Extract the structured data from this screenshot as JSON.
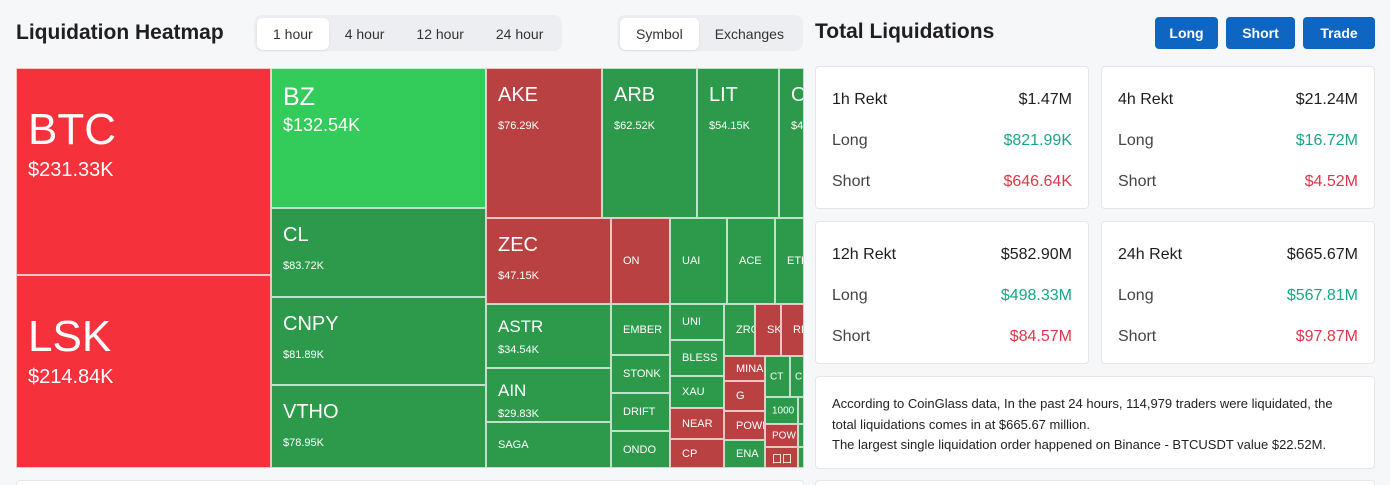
{
  "heatmap": {
    "title": "Liquidation Heatmap",
    "time_tabs": [
      "1 hour",
      "4 hour",
      "12 hour",
      "24 hour"
    ],
    "active_time": "1 hour",
    "view_tabs": [
      "Symbol",
      "Exchanges"
    ],
    "active_view": "Symbol"
  },
  "colors": {
    "long_liquidation_bright": "#f5323b",
    "short_liquidation_bright": "#33cc5a",
    "long_liquidation": "#b94141",
    "short_liquidation": "#2c9a4a",
    "accent": "#0f66c2",
    "long_text": "#18a689",
    "short_text": "#e0364a"
  },
  "tiles": [
    {
      "symbol": "BTC",
      "value": "$231.33K",
      "color": "long_liquidation_bright",
      "size": "xl"
    },
    {
      "symbol": "LSK",
      "value": "$214.84K",
      "color": "long_liquidation_bright",
      "size": "xl"
    },
    {
      "symbol": "BZ",
      "value": "$132.54K",
      "color": "short_liquidation_bright",
      "size": "lg"
    },
    {
      "symbol": "CL",
      "value": "$83.72K",
      "color": "short_liquidation",
      "size": "md"
    },
    {
      "symbol": "CNPY",
      "value": "$81.89K",
      "color": "short_liquidation",
      "size": "md"
    },
    {
      "symbol": "VTHO",
      "value": "$78.95K",
      "color": "short_liquidation",
      "size": "md"
    },
    {
      "symbol": "AKE",
      "value": "$76.29K",
      "color": "long_liquidation",
      "size": "md"
    },
    {
      "symbol": "ARB",
      "value": "$62.52K",
      "color": "short_liquidation",
      "size": "md"
    },
    {
      "symbol": "LIT",
      "value": "$54.15K",
      "color": "short_liquidation",
      "size": "md"
    },
    {
      "symbol": "O",
      "value": "$4",
      "color": "short_liquidation",
      "size": "md"
    },
    {
      "symbol": "ZEC",
      "value": "$47.15K",
      "color": "long_liquidation",
      "size": "md"
    },
    {
      "symbol": "ON",
      "value": "",
      "color": "long_liquidation",
      "size": "sm"
    },
    {
      "symbol": "UAI",
      "value": "",
      "color": "short_liquidation",
      "size": "sm"
    },
    {
      "symbol": "ACE",
      "value": "",
      "color": "short_liquidation",
      "size": "sm"
    },
    {
      "symbol": "ETH",
      "value": "",
      "color": "short_liquidation",
      "size": "sm"
    },
    {
      "symbol": "ASTR",
      "value": "$34.54K",
      "color": "short_liquidation",
      "size": "ms"
    },
    {
      "symbol": "AIN",
      "value": "$29.83K",
      "color": "short_liquidation",
      "size": "ms"
    },
    {
      "symbol": "SAGA",
      "value": "",
      "color": "short_liquidation",
      "size": "sm"
    },
    {
      "symbol": "EMBER",
      "value": "",
      "color": "short_liquidation",
      "size": "sm"
    },
    {
      "symbol": "STONK",
      "value": "",
      "color": "short_liquidation",
      "size": "sm"
    },
    {
      "symbol": "DRIFT",
      "value": "",
      "color": "short_liquidation",
      "size": "sm"
    },
    {
      "symbol": "ONDO",
      "value": "",
      "color": "short_liquidation",
      "size": "sm"
    },
    {
      "symbol": "UNI",
      "value": "",
      "color": "short_liquidation",
      "size": "sm"
    },
    {
      "symbol": "BLESS",
      "value": "",
      "color": "short_liquidation",
      "size": "sm"
    },
    {
      "symbol": "XAU",
      "value": "",
      "color": "short_liquidation",
      "size": "sm"
    },
    {
      "symbol": "NEAR",
      "value": "",
      "color": "long_liquidation",
      "size": "sm"
    },
    {
      "symbol": "CP",
      "value": "",
      "color": "long_liquidation",
      "size": "sm"
    },
    {
      "symbol": "ZRO",
      "value": "",
      "color": "short_liquidation",
      "size": "sm"
    },
    {
      "symbol": "SK",
      "value": "",
      "color": "long_liquidation",
      "size": "sm"
    },
    {
      "symbol": "RE",
      "value": "",
      "color": "long_liquidation",
      "size": "sm"
    },
    {
      "symbol": "MINA",
      "value": "",
      "color": "long_liquidation",
      "size": "sm"
    },
    {
      "symbol": "G",
      "value": "",
      "color": "long_liquidation",
      "size": "sm"
    },
    {
      "symbol": "POWE",
      "value": "",
      "color": "long_liquidation",
      "size": "sm"
    },
    {
      "symbol": "ENA",
      "value": "",
      "color": "short_liquidation",
      "size": "sm"
    },
    {
      "symbol": "CT",
      "value": "",
      "color": "short_liquidation",
      "size": "xs"
    },
    {
      "symbol": "C",
      "value": "",
      "color": "short_liquidation",
      "size": "xs"
    },
    {
      "symbol": "1000",
      "value": "",
      "color": "short_liquidation",
      "size": "xs"
    },
    {
      "symbol": "POW",
      "value": "",
      "color": "long_liquidation",
      "size": "xs"
    },
    {
      "symbol": "囗囗",
      "value": "",
      "color": "long_liquidation",
      "size": "xs"
    },
    {
      "symbol": "",
      "value": "",
      "color": "short_liquidation",
      "size": "xs"
    },
    {
      "symbol": "",
      "value": "",
      "color": "short_liquidation",
      "size": "xs"
    },
    {
      "symbol": "",
      "value": "",
      "color": "short_liquidation",
      "size": "xs"
    },
    {
      "symbol": "",
      "value": "",
      "color": "short_liquidation",
      "size": "xs"
    }
  ],
  "total": {
    "title": "Total Liquidations",
    "buttons": [
      "Long",
      "Short",
      "Trade"
    ],
    "cards": [
      {
        "title": "1h Rekt",
        "total": "$1.47M",
        "long_label": "Long",
        "long": "$821.99K",
        "short_label": "Short",
        "short": "$646.64K"
      },
      {
        "title": "4h Rekt",
        "total": "$21.24M",
        "long_label": "Long",
        "long": "$16.72M",
        "short_label": "Short",
        "short": "$4.52M"
      },
      {
        "title": "12h Rekt",
        "total": "$582.90M",
        "long_label": "Long",
        "long": "$498.33M",
        "short_label": "Short",
        "short": "$84.57M"
      },
      {
        "title": "24h Rekt",
        "total": "$665.67M",
        "long_label": "Long",
        "long": "$567.81M",
        "short_label": "Short",
        "short": "$97.87M"
      }
    ],
    "summary_line1": "According to CoinGlass data, In the past 24 hours, 114,979 traders were liquidated, the total liquidations comes in at $665.67 million.",
    "summary_line2": "The largest single liquidation order happened on Binance - BTCUSDT value $22.52M."
  }
}
